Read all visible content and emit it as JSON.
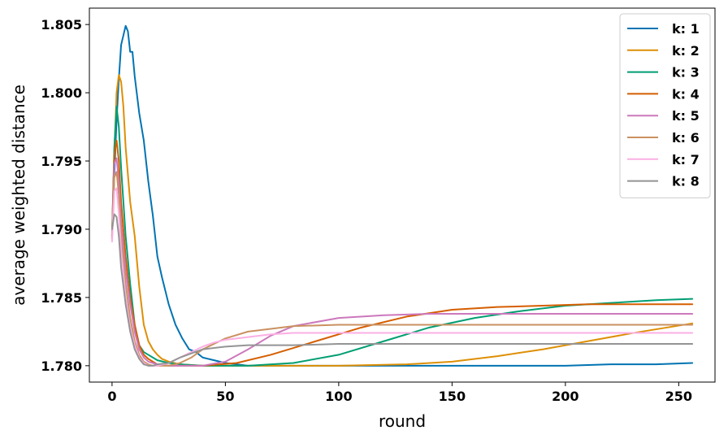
{
  "chart_data": {
    "type": "line",
    "xlabel": "round",
    "ylabel": "average weighted distance",
    "xlim": [
      -10,
      266
    ],
    "ylim": [
      1.7788,
      1.8062
    ],
    "xticks": [
      0,
      50,
      100,
      150,
      200,
      250
    ],
    "xtick_labels": [
      "0",
      "50",
      "100",
      "150",
      "200",
      "250"
    ],
    "yticks": [
      1.78,
      1.785,
      1.79,
      1.795,
      1.8,
      1.805
    ],
    "ytick_labels": [
      "1.780",
      "1.785",
      "1.790",
      "1.795",
      "1.800",
      "1.805"
    ],
    "grid": false,
    "legend_position": "top-right",
    "series": [
      {
        "name": "k: 1",
        "color": "#0173b2",
        "x": [
          0,
          1,
          2,
          3,
          4,
          5,
          6,
          7,
          8,
          9,
          10,
          12,
          14,
          16,
          18,
          20,
          22,
          25,
          28,
          31,
          34,
          37,
          40,
          45,
          50,
          55,
          60,
          80,
          100,
          150,
          180,
          200,
          220,
          240,
          256
        ],
        "y": [
          1.7895,
          1.794,
          1.798,
          1.801,
          1.8035,
          1.8042,
          1.8049,
          1.8045,
          1.803,
          1.803,
          1.8012,
          1.7985,
          1.7965,
          1.7935,
          1.791,
          1.788,
          1.7865,
          1.7845,
          1.783,
          1.782,
          1.7812,
          1.781,
          1.7806,
          1.7804,
          1.7802,
          1.7801,
          1.78,
          1.78,
          1.78,
          1.78,
          1.78,
          1.78,
          1.7801,
          1.7801,
          1.7802
        ]
      },
      {
        "name": "k: 2",
        "color": "#de8f05",
        "x": [
          0,
          1,
          2,
          3,
          4,
          5,
          6,
          8,
          10,
          12,
          14,
          16,
          18,
          20,
          22,
          25,
          30,
          40,
          60,
          100,
          130,
          150,
          170,
          190,
          210,
          230,
          256
        ],
        "y": [
          1.7893,
          1.7955,
          1.8,
          1.8013,
          1.8008,
          1.799,
          1.796,
          1.792,
          1.7895,
          1.7858,
          1.783,
          1.7818,
          1.7812,
          1.7808,
          1.7805,
          1.7803,
          1.7801,
          1.78,
          1.78,
          1.78,
          1.7801,
          1.7803,
          1.7807,
          1.7812,
          1.7818,
          1.7824,
          1.7831
        ]
      },
      {
        "name": "k: 3",
        "color": "#029e73",
        "x": [
          0,
          1,
          2,
          3,
          4,
          6,
          8,
          10,
          12,
          14,
          16,
          18,
          20,
          25,
          30,
          40,
          60,
          80,
          100,
          120,
          140,
          160,
          180,
          200,
          220,
          240,
          256
        ],
        "y": [
          1.7895,
          1.796,
          1.799,
          1.7975,
          1.7945,
          1.7895,
          1.786,
          1.783,
          1.7815,
          1.781,
          1.7808,
          1.7806,
          1.7804,
          1.7802,
          1.7801,
          1.78,
          1.78,
          1.7802,
          1.7808,
          1.7818,
          1.7828,
          1.7835,
          1.784,
          1.7844,
          1.7846,
          1.7848,
          1.7849
        ]
      },
      {
        "name": "k: 4",
        "color": "#d55e00",
        "x": [
          0,
          1,
          2,
          3,
          4,
          6,
          8,
          10,
          12,
          14,
          16,
          18,
          20,
          25,
          30,
          40,
          55,
          70,
          90,
          110,
          130,
          150,
          170,
          190,
          210,
          230,
          256
        ],
        "y": [
          1.7895,
          1.7955,
          1.7965,
          1.795,
          1.792,
          1.788,
          1.785,
          1.783,
          1.7815,
          1.7808,
          1.7805,
          1.7803,
          1.7801,
          1.78,
          1.78,
          1.78,
          1.7802,
          1.7808,
          1.7818,
          1.7828,
          1.7836,
          1.7841,
          1.7843,
          1.7844,
          1.7845,
          1.7845,
          1.7845
        ]
      },
      {
        "name": "k: 5",
        "color": "#cc78bc",
        "x": [
          0,
          1,
          2,
          3,
          4,
          6,
          8,
          10,
          12,
          14,
          16,
          18,
          20,
          25,
          30,
          40,
          50,
          60,
          70,
          80,
          100,
          120,
          140,
          160,
          200,
          256
        ],
        "y": [
          1.7893,
          1.7948,
          1.7952,
          1.7935,
          1.7905,
          1.787,
          1.7845,
          1.7825,
          1.7812,
          1.7806,
          1.7803,
          1.7802,
          1.7801,
          1.78,
          1.78,
          1.78,
          1.7803,
          1.7812,
          1.7822,
          1.7829,
          1.7835,
          1.7837,
          1.7838,
          1.7838,
          1.7838,
          1.7838
        ]
      },
      {
        "name": "k: 6",
        "color": "#ca9161",
        "x": [
          0,
          1,
          2,
          3,
          4,
          6,
          8,
          10,
          12,
          14,
          16,
          18,
          20,
          25,
          30,
          35,
          40,
          50,
          60,
          70,
          80,
          100,
          120,
          150,
          200,
          256
        ],
        "y": [
          1.7893,
          1.7938,
          1.7942,
          1.7925,
          1.7895,
          1.786,
          1.7835,
          1.7818,
          1.7808,
          1.7803,
          1.7801,
          1.78,
          1.78,
          1.78,
          1.7802,
          1.7806,
          1.7812,
          1.782,
          1.7825,
          1.7827,
          1.7829,
          1.783,
          1.783,
          1.783,
          1.783,
          1.783
        ]
      },
      {
        "name": "k: 7",
        "color": "#fbafe4",
        "x": [
          0,
          1,
          2,
          3,
          4,
          6,
          8,
          10,
          12,
          14,
          16,
          18,
          20,
          25,
          30,
          35,
          40,
          45,
          50,
          60,
          70,
          80,
          100,
          150,
          200,
          256
        ],
        "y": [
          1.7891,
          1.7928,
          1.793,
          1.7912,
          1.7885,
          1.785,
          1.7828,
          1.7815,
          1.7806,
          1.7802,
          1.78,
          1.78,
          1.78,
          1.7802,
          1.7806,
          1.781,
          1.7814,
          1.7817,
          1.7819,
          1.7821,
          1.7823,
          1.7824,
          1.7824,
          1.7824,
          1.7824,
          1.7824
        ]
      },
      {
        "name": "k: 8",
        "color": "#949494",
        "x": [
          0,
          1,
          2,
          3,
          4,
          6,
          8,
          10,
          12,
          14,
          16,
          18,
          20,
          25,
          30,
          35,
          40,
          50,
          60,
          80,
          100,
          150,
          200,
          256
        ],
        "y": [
          1.79,
          1.7911,
          1.7909,
          1.7895,
          1.7872,
          1.7845,
          1.7825,
          1.7812,
          1.7805,
          1.7801,
          1.78,
          1.78,
          1.7801,
          1.7802,
          1.7806,
          1.7809,
          1.7812,
          1.7814,
          1.7815,
          1.7815,
          1.7816,
          1.7816,
          1.7816,
          1.7816
        ]
      }
    ]
  }
}
